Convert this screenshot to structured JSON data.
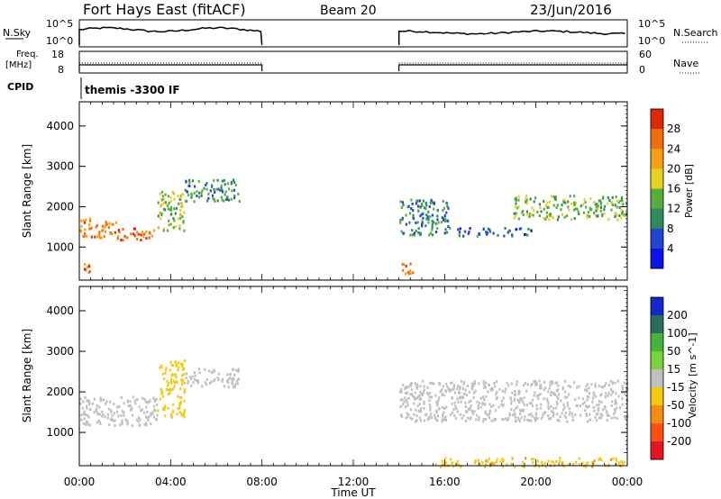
{
  "header": {
    "station": "Fort Hays East (fitACF)",
    "beam": "Beam 20",
    "date": "23/Jun/2016"
  },
  "summary": {
    "nsky_label": "N.Sky",
    "nsky_ticks": [
      "10^5",
      "10^0"
    ],
    "nsearch_label": "N.Search",
    "nsearch_ticks": [
      "10^5",
      "10^0"
    ],
    "freq_label_1": "Freq.",
    "freq_label_2": "[MHz]",
    "freq_ticks": [
      "18",
      "8"
    ],
    "nave_label": "Nave",
    "nave_ticks": [
      "60",
      "0"
    ],
    "cpid_label": "CPID",
    "cpid_value": "themis -3300 IF"
  },
  "chart_data": [
    {
      "type": "heatmap",
      "title": "",
      "xlabel": "Time UT",
      "ylabel": "Slant Range [km]",
      "x_ticks": [
        "00:00",
        "04:00",
        "08:00",
        "12:00",
        "16:00",
        "20:00",
        "00:00"
      ],
      "xlim_hours": [
        0,
        24
      ],
      "y_ticks": [
        1000,
        2000,
        3000,
        4000
      ],
      "ylim": [
        180,
        4600
      ],
      "colorbar": {
        "label": "Power [dB]",
        "ticks": [
          4,
          8,
          12,
          16,
          20,
          24,
          28
        ],
        "range": [
          0,
          32
        ],
        "colors": [
          "#0a14e6",
          "#2046d0",
          "#2c8a5c",
          "#58ad3c",
          "#e6d21e",
          "#f5a014",
          "#f06e0e",
          "#e12806"
        ]
      },
      "data_gaps_hours": [
        [
          8.0,
          14.0
        ]
      ],
      "echo_regions": [
        {
          "t": [
            0.0,
            1.6
          ],
          "range_km": [
            1250,
            1750
          ],
          "value": 24
        },
        {
          "t": [
            1.6,
            3.4
          ],
          "range_km": [
            1200,
            1500
          ],
          "value": 26
        },
        {
          "t": [
            3.4,
            4.6
          ],
          "range_km": [
            1400,
            2400
          ],
          "value": 16
        },
        {
          "t": [
            4.6,
            7.0
          ],
          "range_km": [
            2150,
            2700
          ],
          "value": 11
        },
        {
          "t": [
            0.1,
            0.6
          ],
          "range_km": [
            400,
            650
          ],
          "value": 27
        },
        {
          "t": [
            14.0,
            14.6
          ],
          "range_km": [
            350,
            650
          ],
          "value": 25
        },
        {
          "t": [
            14.0,
            16.2
          ],
          "range_km": [
            1300,
            2200
          ],
          "value": 10
        },
        {
          "t": [
            16.5,
            19.8
          ],
          "range_km": [
            1300,
            1500
          ],
          "value": 8
        },
        {
          "t": [
            19.0,
            24.0
          ],
          "range_km": [
            1700,
            2300
          ],
          "value": 14
        }
      ]
    },
    {
      "type": "heatmap",
      "title": "",
      "xlabel": "Time UT",
      "ylabel": "Slant Range [km]",
      "x_ticks": [
        "00:00",
        "04:00",
        "08:00",
        "12:00",
        "16:00",
        "20:00",
        "00:00"
      ],
      "xlim_hours": [
        0,
        24
      ],
      "y_ticks": [
        1000,
        2000,
        3000,
        4000
      ],
      "ylim": [
        180,
        4600
      ],
      "colorbar": {
        "label": "Velocity [m s^-1]",
        "ticks": [
          200,
          100,
          50,
          15,
          -15,
          -50,
          -100,
          -200
        ],
        "range": [
          -250,
          250
        ],
        "colors": [
          "#1428c8",
          "#286e5a",
          "#46b43c",
          "#78d23c",
          "#c0c0c0",
          "#f5c814",
          "#f58c14",
          "#ff5014",
          "#e6141e"
        ]
      },
      "data_gaps_hours": [
        [
          8.0,
          14.0
        ]
      ],
      "echo_regions": [
        {
          "t": [
            0.0,
            3.4
          ],
          "range_km": [
            1200,
            1900
          ],
          "value": 0
        },
        {
          "t": [
            3.4,
            4.6
          ],
          "range_km": [
            1400,
            2800
          ],
          "value": -60
        },
        {
          "t": [
            4.6,
            7.0
          ],
          "range_km": [
            2150,
            2600
          ],
          "value": 0
        },
        {
          "t": [
            14.0,
            24.0
          ],
          "range_km": [
            1300,
            2300
          ],
          "value": 0
        },
        {
          "t": [
            15.5,
            24.0
          ],
          "range_km": [
            180,
            400
          ],
          "value": -70
        }
      ]
    }
  ]
}
